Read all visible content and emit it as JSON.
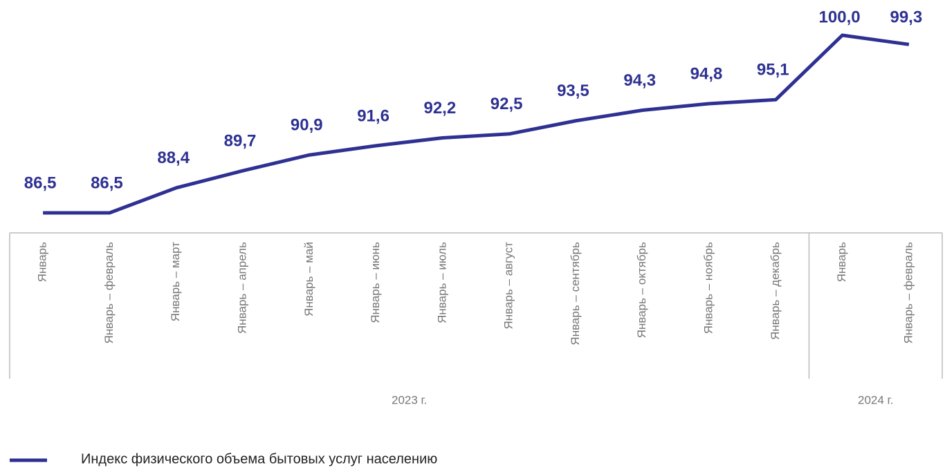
{
  "chart_data": {
    "type": "line",
    "categories": [
      "Январь",
      "Январь – февраль",
      "Январь – март",
      "Январь – апрель",
      "Январь – май",
      "Январь – июнь",
      "Январь – июль",
      "Январь – август",
      "Январь – сентябрь",
      "Январь – октябрь",
      "Январь – ноябрь",
      "Январь – декабрь",
      "Январь",
      "Январь – февраль"
    ],
    "groups": [
      {
        "label": "2023 г.",
        "categories": 12
      },
      {
        "label": "2024 г.",
        "categories": 2
      }
    ],
    "series": [
      {
        "name": "Индекс физического объема бытовых услуг населению",
        "color": "#2e3192",
        "values": [
          86.5,
          86.5,
          88.4,
          89.7,
          90.9,
          91.6,
          92.2,
          92.5,
          93.5,
          94.3,
          94.8,
          95.1,
          100.0,
          99.3
        ],
        "value_labels": [
          "86,5",
          "86,5",
          "88,4",
          "89,7",
          "90,9",
          "91,6",
          "92,2",
          "92,5",
          "93,5",
          "94,3",
          "94,8",
          "95,1",
          "100,0",
          "99,3"
        ]
      }
    ],
    "legend": "bottom-left"
  }
}
